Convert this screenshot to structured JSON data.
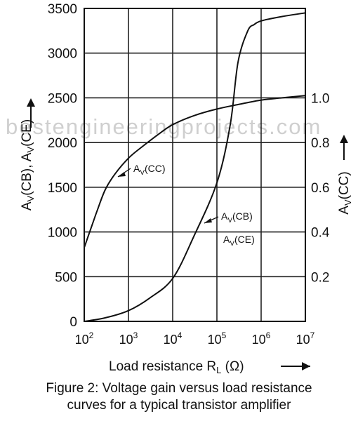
{
  "watermark": "bestengineeringprojects.com",
  "caption": {
    "line1": "Figure 2: Voltage gain versus load resistance",
    "line2": "curves for a typical transistor amplifier"
  },
  "chart_data": {
    "type": "line",
    "title": "",
    "xscale": "log",
    "xlim": [
      100,
      10000000
    ],
    "x_ticks": [
      100,
      1000,
      10000,
      100000,
      1000000,
      10000000
    ],
    "xlabel": "Load resistance R_L (Ω)",
    "left_axis": {
      "label": "A_V(CB), A_V(CE)",
      "lim": [
        0,
        3500
      ],
      "ticks": [
        0,
        500,
        1000,
        1500,
        2000,
        2500,
        3000,
        3500
      ]
    },
    "right_axis": {
      "label": "A_V(CC)",
      "lim": [
        0,
        1.4
      ],
      "ticks": [
        0.2,
        0.4,
        0.6,
        0.8,
        1.0
      ]
    },
    "grid": true,
    "series": [
      {
        "name": "A_V(CC)",
        "axis": "right",
        "x": [
          100,
          150,
          200,
          300,
          500,
          1000,
          2000,
          5000,
          10000,
          30000,
          100000,
          300000,
          1000000,
          3000000,
          10000000
        ],
        "y": [
          0.33,
          0.43,
          0.5,
          0.59,
          0.66,
          0.73,
          0.78,
          0.84,
          0.88,
          0.92,
          0.95,
          0.97,
          0.99,
          1.0,
          1.01
        ]
      },
      {
        "name": "A_V(CB)",
        "axis": "left",
        "x": [
          100,
          300,
          1000,
          3000,
          10000,
          30000,
          100000,
          200000,
          300000,
          500000,
          700000,
          1000000,
          3000000,
          10000000
        ],
        "y": [
          0,
          40,
          120,
          260,
          480,
          950,
          1550,
          2200,
          2900,
          3250,
          3320,
          3360,
          3410,
          3450
        ]
      }
    ],
    "annotations": [
      {
        "text": "A_V(CC)",
        "series": "A_V(CC)"
      },
      {
        "text": "A_V(CB)",
        "series": "A_V(CB)"
      },
      {
        "text": "A_V(CE)",
        "series": "A_V(CB)"
      }
    ]
  }
}
